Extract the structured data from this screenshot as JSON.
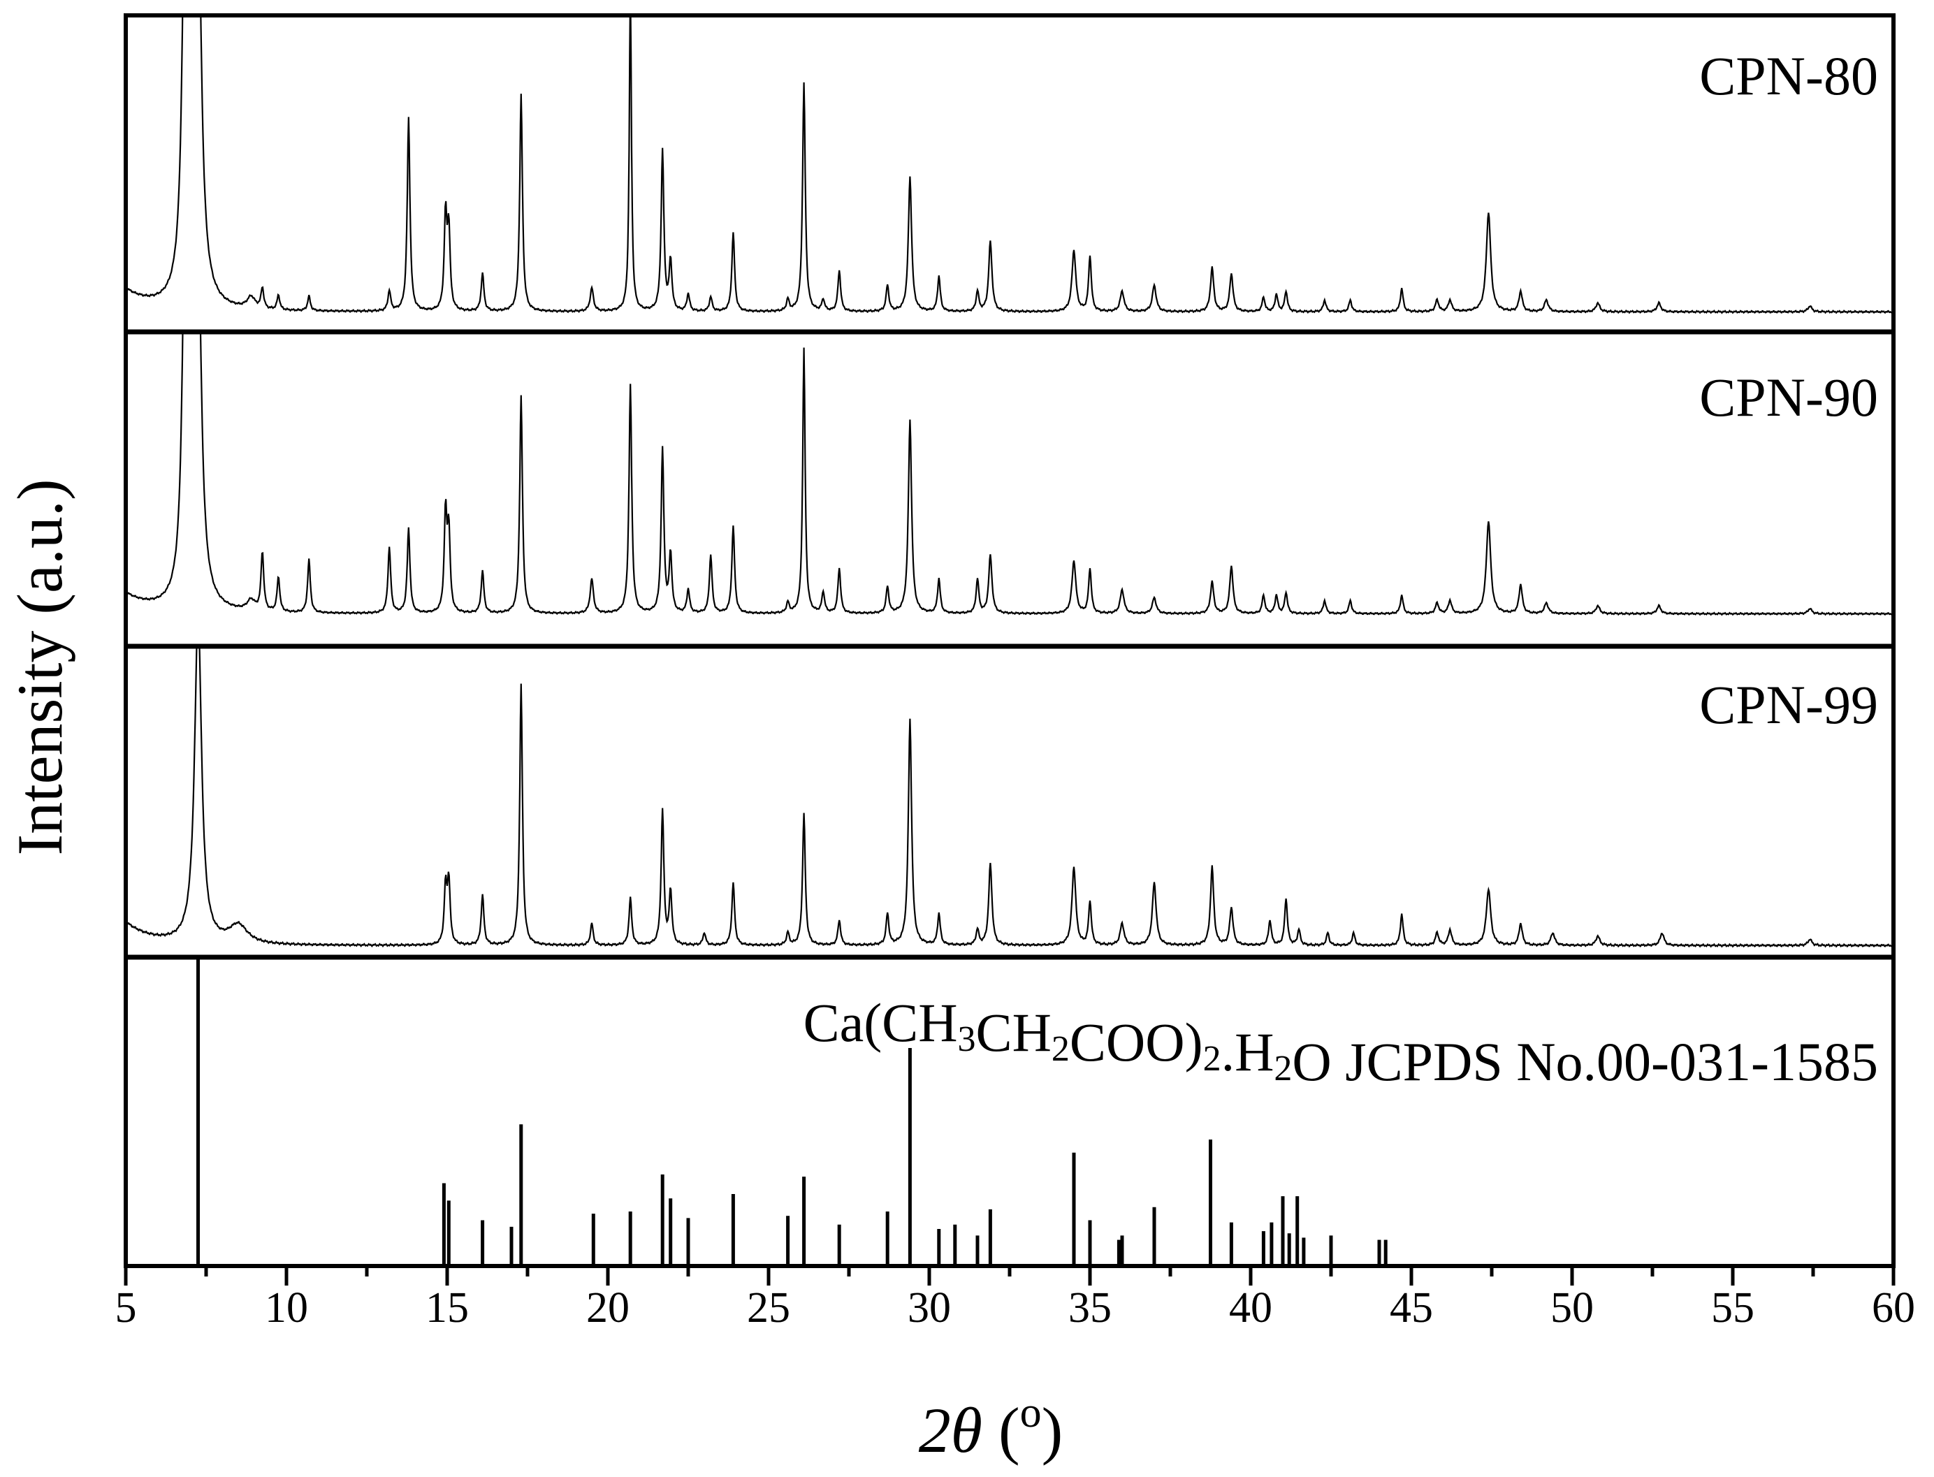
{
  "chart_data": {
    "type": "line",
    "xlabel_prefix": "2",
    "xlabel_theta": "θ",
    "xlabel_unit_open": " (",
    "xlabel_unit_degree": "o",
    "xlabel_unit_close": ")",
    "ylabel": "Intensity (a.u.)",
    "xlim": [
      5,
      60
    ],
    "x_ticks": [
      "5",
      "10",
      "15",
      "20",
      "25",
      "30",
      "35",
      "40",
      "45",
      "50",
      "55",
      "60"
    ],
    "grid": false,
    "panels": [
      {
        "name": "CPN-80",
        "peaks": [
          {
            "x": 6.85,
            "y": 1.35,
            "w": 0.1
          },
          {
            "x": 7.05,
            "y": 1.3,
            "w": 0.1
          },
          {
            "x": 7.25,
            "y": 1.2,
            "w": 0.12
          },
          {
            "x": 8.9,
            "y": 0.04,
            "w": 0.15
          },
          {
            "x": 9.25,
            "y": 0.07,
            "w": 0.05
          },
          {
            "x": 9.75,
            "y": 0.05,
            "w": 0.05
          },
          {
            "x": 10.7,
            "y": 0.05,
            "w": 0.05
          },
          {
            "x": 13.2,
            "y": 0.07,
            "w": 0.05
          },
          {
            "x": 13.8,
            "y": 0.66,
            "w": 0.05
          },
          {
            "x": 14.95,
            "y": 0.32,
            "w": 0.05
          },
          {
            "x": 15.05,
            "y": 0.27,
            "w": 0.05
          },
          {
            "x": 16.1,
            "y": 0.13,
            "w": 0.05
          },
          {
            "x": 17.3,
            "y": 0.74,
            "w": 0.05
          },
          {
            "x": 19.5,
            "y": 0.08,
            "w": 0.06
          },
          {
            "x": 20.7,
            "y": 1.1,
            "w": 0.04
          },
          {
            "x": 21.7,
            "y": 0.55,
            "w": 0.05
          },
          {
            "x": 21.95,
            "y": 0.17,
            "w": 0.05
          },
          {
            "x": 22.5,
            "y": 0.06,
            "w": 0.05
          },
          {
            "x": 23.2,
            "y": 0.05,
            "w": 0.05
          },
          {
            "x": 23.9,
            "y": 0.27,
            "w": 0.05
          },
          {
            "x": 25.6,
            "y": 0.04,
            "w": 0.05
          },
          {
            "x": 26.1,
            "y": 0.78,
            "w": 0.05
          },
          {
            "x": 26.7,
            "y": 0.04,
            "w": 0.05
          },
          {
            "x": 27.2,
            "y": 0.14,
            "w": 0.05
          },
          {
            "x": 28.7,
            "y": 0.09,
            "w": 0.05
          },
          {
            "x": 29.4,
            "y": 0.46,
            "w": 0.06
          },
          {
            "x": 30.3,
            "y": 0.12,
            "w": 0.05
          },
          {
            "x": 31.5,
            "y": 0.07,
            "w": 0.05
          },
          {
            "x": 31.9,
            "y": 0.24,
            "w": 0.06
          },
          {
            "x": 34.5,
            "y": 0.21,
            "w": 0.07
          },
          {
            "x": 35.0,
            "y": 0.19,
            "w": 0.05
          },
          {
            "x": 36.0,
            "y": 0.07,
            "w": 0.07
          },
          {
            "x": 37.0,
            "y": 0.09,
            "w": 0.07
          },
          {
            "x": 38.8,
            "y": 0.15,
            "w": 0.06
          },
          {
            "x": 39.4,
            "y": 0.13,
            "w": 0.06
          },
          {
            "x": 40.4,
            "y": 0.05,
            "w": 0.05
          },
          {
            "x": 40.8,
            "y": 0.06,
            "w": 0.05
          },
          {
            "x": 41.1,
            "y": 0.07,
            "w": 0.05
          },
          {
            "x": 42.3,
            "y": 0.04,
            "w": 0.05
          },
          {
            "x": 43.1,
            "y": 0.04,
            "w": 0.05
          },
          {
            "x": 44.7,
            "y": 0.08,
            "w": 0.05
          },
          {
            "x": 45.8,
            "y": 0.04,
            "w": 0.06
          },
          {
            "x": 46.2,
            "y": 0.04,
            "w": 0.06
          },
          {
            "x": 47.4,
            "y": 0.34,
            "w": 0.08
          },
          {
            "x": 48.4,
            "y": 0.07,
            "w": 0.06
          },
          {
            "x": 49.2,
            "y": 0.04,
            "w": 0.07
          },
          {
            "x": 50.8,
            "y": 0.03,
            "w": 0.07
          },
          {
            "x": 52.7,
            "y": 0.03,
            "w": 0.07
          },
          {
            "x": 57.4,
            "y": 0.02,
            "w": 0.07
          }
        ]
      },
      {
        "name": "CPN-90",
        "peaks": [
          {
            "x": 6.85,
            "y": 1.35,
            "w": 0.1
          },
          {
            "x": 7.05,
            "y": 1.3,
            "w": 0.1
          },
          {
            "x": 7.25,
            "y": 1.2,
            "w": 0.12
          },
          {
            "x": 8.9,
            "y": 0.04,
            "w": 0.15
          },
          {
            "x": 9.25,
            "y": 0.22,
            "w": 0.05
          },
          {
            "x": 9.75,
            "y": 0.13,
            "w": 0.05
          },
          {
            "x": 10.7,
            "y": 0.2,
            "w": 0.05
          },
          {
            "x": 13.2,
            "y": 0.25,
            "w": 0.05
          },
          {
            "x": 13.8,
            "y": 0.32,
            "w": 0.05
          },
          {
            "x": 14.95,
            "y": 0.37,
            "w": 0.05
          },
          {
            "x": 15.05,
            "y": 0.3,
            "w": 0.05
          },
          {
            "x": 16.1,
            "y": 0.16,
            "w": 0.05
          },
          {
            "x": 17.3,
            "y": 0.82,
            "w": 0.05
          },
          {
            "x": 19.5,
            "y": 0.13,
            "w": 0.06
          },
          {
            "x": 20.7,
            "y": 0.86,
            "w": 0.05
          },
          {
            "x": 21.7,
            "y": 0.62,
            "w": 0.05
          },
          {
            "x": 21.95,
            "y": 0.22,
            "w": 0.05
          },
          {
            "x": 22.5,
            "y": 0.09,
            "w": 0.05
          },
          {
            "x": 23.2,
            "y": 0.22,
            "w": 0.05
          },
          {
            "x": 23.9,
            "y": 0.33,
            "w": 0.05
          },
          {
            "x": 25.6,
            "y": 0.04,
            "w": 0.05
          },
          {
            "x": 26.1,
            "y": 1.0,
            "w": 0.045
          },
          {
            "x": 26.7,
            "y": 0.08,
            "w": 0.05
          },
          {
            "x": 27.2,
            "y": 0.17,
            "w": 0.05
          },
          {
            "x": 28.7,
            "y": 0.1,
            "w": 0.05
          },
          {
            "x": 29.4,
            "y": 0.73,
            "w": 0.06
          },
          {
            "x": 30.3,
            "y": 0.13,
            "w": 0.05
          },
          {
            "x": 31.5,
            "y": 0.13,
            "w": 0.05
          },
          {
            "x": 31.9,
            "y": 0.22,
            "w": 0.06
          },
          {
            "x": 34.5,
            "y": 0.2,
            "w": 0.07
          },
          {
            "x": 35.0,
            "y": 0.17,
            "w": 0.05
          },
          {
            "x": 36.0,
            "y": 0.09,
            "w": 0.07
          },
          {
            "x": 37.0,
            "y": 0.06,
            "w": 0.07
          },
          {
            "x": 38.8,
            "y": 0.12,
            "w": 0.06
          },
          {
            "x": 39.4,
            "y": 0.18,
            "w": 0.06
          },
          {
            "x": 40.4,
            "y": 0.07,
            "w": 0.05
          },
          {
            "x": 40.8,
            "y": 0.07,
            "w": 0.05
          },
          {
            "x": 41.1,
            "y": 0.08,
            "w": 0.05
          },
          {
            "x": 42.3,
            "y": 0.05,
            "w": 0.05
          },
          {
            "x": 43.1,
            "y": 0.05,
            "w": 0.05
          },
          {
            "x": 44.7,
            "y": 0.07,
            "w": 0.05
          },
          {
            "x": 45.8,
            "y": 0.04,
            "w": 0.06
          },
          {
            "x": 46.2,
            "y": 0.05,
            "w": 0.06
          },
          {
            "x": 47.4,
            "y": 0.35,
            "w": 0.08
          },
          {
            "x": 48.4,
            "y": 0.11,
            "w": 0.06
          },
          {
            "x": 49.2,
            "y": 0.04,
            "w": 0.07
          },
          {
            "x": 50.8,
            "y": 0.03,
            "w": 0.07
          },
          {
            "x": 52.7,
            "y": 0.03,
            "w": 0.07
          },
          {
            "x": 57.4,
            "y": 0.02,
            "w": 0.07
          }
        ]
      },
      {
        "name": "CPN-99",
        "peaks": [
          {
            "x": 7.25,
            "y": 1.05,
            "w": 0.13
          },
          {
            "x": 8.5,
            "y": 0.06,
            "w": 0.35
          },
          {
            "x": 14.95,
            "y": 0.18,
            "w": 0.05
          },
          {
            "x": 15.05,
            "y": 0.2,
            "w": 0.05
          },
          {
            "x": 16.1,
            "y": 0.16,
            "w": 0.05
          },
          {
            "x": 17.3,
            "y": 0.83,
            "w": 0.05
          },
          {
            "x": 19.5,
            "y": 0.07,
            "w": 0.05
          },
          {
            "x": 20.7,
            "y": 0.15,
            "w": 0.05
          },
          {
            "x": 21.7,
            "y": 0.43,
            "w": 0.05
          },
          {
            "x": 21.95,
            "y": 0.17,
            "w": 0.05
          },
          {
            "x": 23.0,
            "y": 0.04,
            "w": 0.05
          },
          {
            "x": 23.9,
            "y": 0.2,
            "w": 0.05
          },
          {
            "x": 25.6,
            "y": 0.04,
            "w": 0.05
          },
          {
            "x": 26.1,
            "y": 0.42,
            "w": 0.05
          },
          {
            "x": 27.2,
            "y": 0.08,
            "w": 0.05
          },
          {
            "x": 28.7,
            "y": 0.1,
            "w": 0.05
          },
          {
            "x": 29.4,
            "y": 0.72,
            "w": 0.06
          },
          {
            "x": 30.3,
            "y": 0.1,
            "w": 0.05
          },
          {
            "x": 31.5,
            "y": 0.05,
            "w": 0.05
          },
          {
            "x": 31.9,
            "y": 0.26,
            "w": 0.06
          },
          {
            "x": 34.5,
            "y": 0.25,
            "w": 0.07
          },
          {
            "x": 35.0,
            "y": 0.14,
            "w": 0.05
          },
          {
            "x": 36.0,
            "y": 0.07,
            "w": 0.07
          },
          {
            "x": 37.0,
            "y": 0.2,
            "w": 0.07
          },
          {
            "x": 38.8,
            "y": 0.25,
            "w": 0.06
          },
          {
            "x": 39.4,
            "y": 0.12,
            "w": 0.06
          },
          {
            "x": 40.6,
            "y": 0.08,
            "w": 0.05
          },
          {
            "x": 41.1,
            "y": 0.15,
            "w": 0.05
          },
          {
            "x": 41.5,
            "y": 0.05,
            "w": 0.05
          },
          {
            "x": 42.4,
            "y": 0.04,
            "w": 0.05
          },
          {
            "x": 43.2,
            "y": 0.04,
            "w": 0.05
          },
          {
            "x": 44.7,
            "y": 0.1,
            "w": 0.05
          },
          {
            "x": 45.8,
            "y": 0.04,
            "w": 0.06
          },
          {
            "x": 46.2,
            "y": 0.05,
            "w": 0.06
          },
          {
            "x": 47.4,
            "y": 0.18,
            "w": 0.08
          },
          {
            "x": 48.4,
            "y": 0.07,
            "w": 0.06
          },
          {
            "x": 49.4,
            "y": 0.04,
            "w": 0.07
          },
          {
            "x": 50.8,
            "y": 0.03,
            "w": 0.07
          },
          {
            "x": 52.8,
            "y": 0.04,
            "w": 0.07
          },
          {
            "x": 57.4,
            "y": 0.02,
            "w": 0.07
          }
        ]
      }
    ],
    "reference": {
      "label_parts": [
        {
          "t": "Ca(CH",
          "s": ""
        },
        {
          "t": "3",
          "s": "sub"
        },
        {
          "t": "CH",
          "s": ""
        },
        {
          "t": "2",
          "s": "sub"
        },
        {
          "t": "COO)",
          "s": ""
        },
        {
          "t": "2",
          "s": "sub"
        },
        {
          "t": ".H",
          "s": ""
        },
        {
          "t": "2",
          "s": "sub"
        },
        {
          "t": "O JCPDS No.00-031-1585",
          "s": ""
        }
      ],
      "x": [
        7.25,
        14.9,
        15.05,
        16.1,
        17.0,
        17.3,
        19.55,
        20.7,
        21.7,
        21.95,
        22.5,
        23.9,
        25.6,
        26.1,
        27.2,
        28.7,
        29.4,
        30.3,
        30.8,
        31.5,
        31.9,
        34.5,
        35.0,
        35.9,
        36.0,
        37.0,
        38.75,
        39.4,
        40.4,
        40.65,
        41.0,
        41.2,
        41.45,
        41.65,
        42.5,
        44.0,
        44.2
      ],
      "y": [
        1.0,
        0.38,
        0.3,
        0.21,
        0.18,
        0.65,
        0.24,
        0.25,
        0.42,
        0.31,
        0.22,
        0.33,
        0.23,
        0.41,
        0.19,
        0.25,
        1.0,
        0.17,
        0.19,
        0.14,
        0.26,
        0.52,
        0.21,
        0.12,
        0.14,
        0.27,
        0.58,
        0.2,
        0.16,
        0.2,
        0.32,
        0.15,
        0.32,
        0.13,
        0.14,
        0.12,
        0.12
      ]
    }
  }
}
